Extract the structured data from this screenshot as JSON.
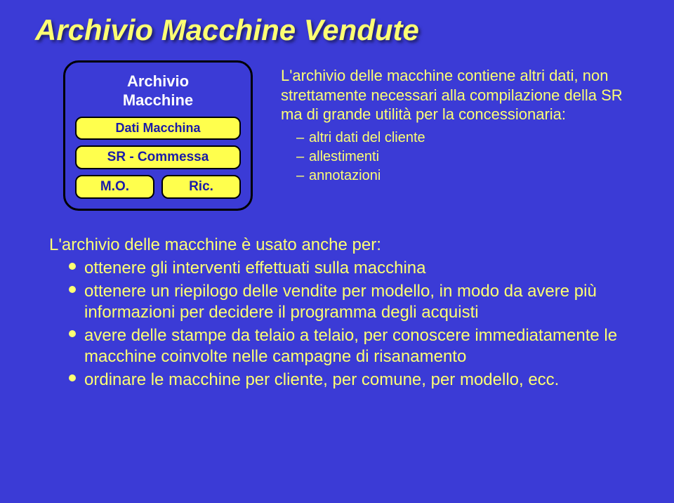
{
  "colors": {
    "slide_bg": "#3b3bd6",
    "title_color": "#fdff73",
    "body_text": "#fdff73",
    "diagram_label": "#fdfdfd",
    "pill_bg": "#ffff4d",
    "pill_text": "#1a1aa8",
    "bullet_color": "#fdff73"
  },
  "fonts": {
    "title_size": 42,
    "diagram_label_size": 22,
    "pill_large_size": 18,
    "pill_medium_size": 19,
    "pill_small_size": 19,
    "right_text_size": 22,
    "sub_list_size": 20,
    "lower_text_size": 24,
    "bullet_dot_size": 10
  },
  "title": "Archivio Macchine Vendute",
  "diagram": {
    "label_line1": "Archivio",
    "label_line2": "Macchine",
    "pill_top": "Dati Macchina",
    "pill_mid": "SR - Commessa",
    "pill_bl": "M.O.",
    "pill_br": "Ric."
  },
  "right": {
    "lead": "L'archivio delle macchine contiene altri dati, non strettamente necessari alla compilazione della SR ma di grande utilità per la concessionaria:",
    "items": [
      "altri dati del cliente",
      "allestimenti",
      "annotazioni"
    ]
  },
  "lower": {
    "lead": "L'archivio delle macchine è usato anche per:",
    "bullets": [
      "ottenere gli interventi effettuati sulla macchina",
      "ottenere un riepilogo delle vendite per modello, in modo da avere più informazioni per decidere il programma degli acquisti",
      "avere delle stampe da telaio a telaio, per conoscere immediatamente le macchine coinvolte nelle campagne di risanamento",
      "ordinare le macchine per cliente, per comune, per modello, ecc."
    ]
  }
}
